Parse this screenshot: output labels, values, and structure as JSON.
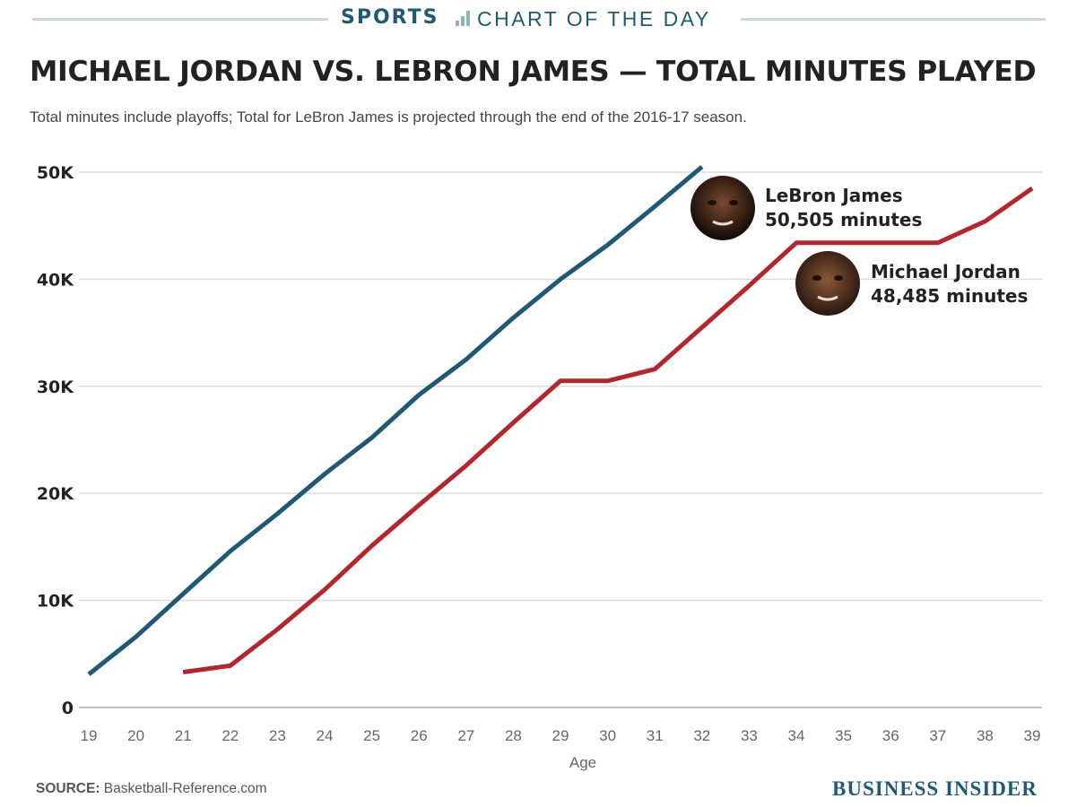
{
  "header": {
    "sports_label": "SPORTS",
    "section_label": "CHART OF THE DAY",
    "rule_color": "#d3d6d9",
    "accent_color": "#1e5a77"
  },
  "footer": {
    "source_label": "SOURCE:",
    "source_value": "Basketball-Reference.com",
    "brand": "BUSINESS INSIDER"
  },
  "chart_data": {
    "type": "line",
    "title": "MICHAEL JORDAN VS. LEBRON JAMES — TOTAL MINUTES PLAYED",
    "subtitle": "Total minutes include playoffs; Total for LeBron James is projected through the end of the 2016-17 season.",
    "xlabel": "Age",
    "ylabel": "",
    "xlim": [
      19,
      39
    ],
    "ylim": [
      0,
      50000
    ],
    "x_ticks": [
      19,
      20,
      21,
      22,
      23,
      24,
      25,
      26,
      27,
      28,
      29,
      30,
      31,
      32,
      33,
      34,
      35,
      36,
      37,
      38,
      39
    ],
    "y_ticks": [
      0,
      10000,
      20000,
      30000,
      40000,
      50000
    ],
    "y_tick_labels": [
      "0",
      "10K",
      "20K",
      "30K",
      "40K",
      "50K"
    ],
    "grid": true,
    "series": [
      {
        "name": "LeBron James",
        "color": "#1e5a77",
        "x": [
          19,
          20,
          21,
          22,
          23,
          24,
          25,
          26,
          27,
          28,
          29,
          30,
          31,
          32
        ],
        "values": [
          3100,
          6600,
          10600,
          14600,
          18100,
          21800,
          25200,
          29200,
          32500,
          36400,
          40000,
          43200,
          46800,
          50505
        ],
        "label_name": "LeBron James",
        "label_value": "50,505 minutes"
      },
      {
        "name": "Michael Jordan",
        "color": "#b5252b",
        "x": [
          21,
          22,
          23,
          24,
          25,
          26,
          27,
          28,
          29,
          30,
          31,
          32,
          33,
          34,
          35,
          36,
          37,
          38,
          39
        ],
        "values": [
          3300,
          3900,
          7300,
          11000,
          15100,
          18900,
          22600,
          26600,
          30500,
          30500,
          31600,
          35500,
          39400,
          43400,
          43400,
          43400,
          43400,
          45400,
          48485
        ],
        "label_name": "Michael Jordan",
        "label_value": "48,485 minutes"
      }
    ]
  }
}
